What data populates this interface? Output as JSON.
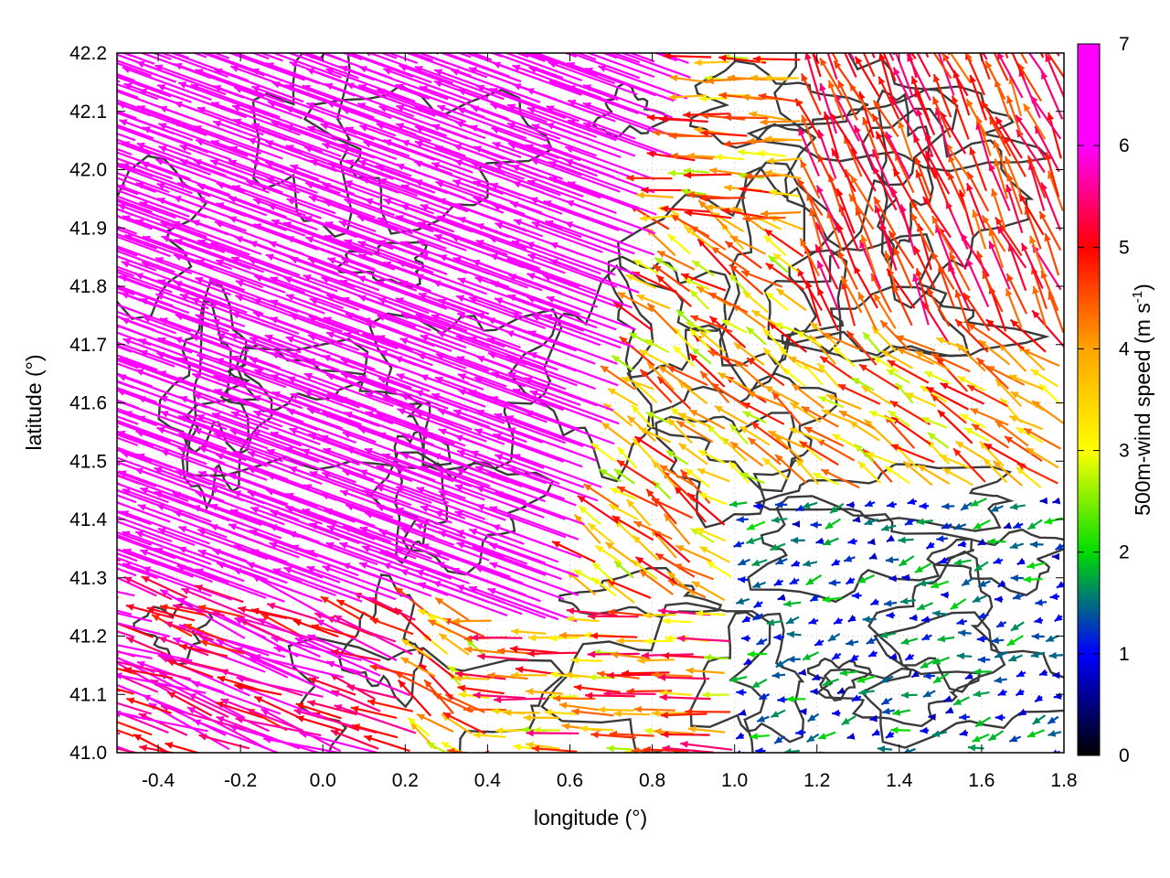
{
  "chart_data": {
    "type": "vector-field",
    "xlabel": "longitude (°)",
    "ylabel": "latitude (°)",
    "xlim": [
      -0.5,
      1.8
    ],
    "ylim": [
      41.0,
      42.2
    ],
    "xticks": [
      "-0.4",
      "-0.2",
      "0.0",
      "0.2",
      "0.4",
      "0.6",
      "0.8",
      "1.0",
      "1.2",
      "1.4",
      "1.6",
      "1.8"
    ],
    "yticks": [
      "41.0",
      "41.1",
      "41.2",
      "41.3",
      "41.4",
      "41.5",
      "41.6",
      "41.7",
      "41.8",
      "41.9",
      "42.0",
      "42.1",
      "42.2"
    ],
    "grid": "dotted",
    "colorbar": {
      "label_main": "500m-wind speed (m s",
      "label_sup": "-1",
      "label_end": ")",
      "range": [
        0,
        7
      ],
      "ticks": [
        "0",
        "1",
        "2",
        "3",
        "4",
        "5",
        "6",
        "7"
      ],
      "colors": [
        "#000000",
        "#0000ff",
        "#00dd00",
        "#ffff00",
        "#ffa500",
        "#ff0000",
        "#ff00ff"
      ]
    },
    "wind_regions": [
      {
        "region": "north-west and west",
        "speed_ms": 7,
        "direction": "from east-south-east"
      },
      {
        "region": "north-east",
        "speed_ms": 5.5,
        "direction": "from south-south-east"
      },
      {
        "region": "central",
        "speed_ms": 4,
        "direction": "from south-east"
      },
      {
        "region": "south-east",
        "speed_ms": 1.5,
        "direction": "from east"
      }
    ],
    "contours": "terrain elevation (dark grey lines)"
  }
}
